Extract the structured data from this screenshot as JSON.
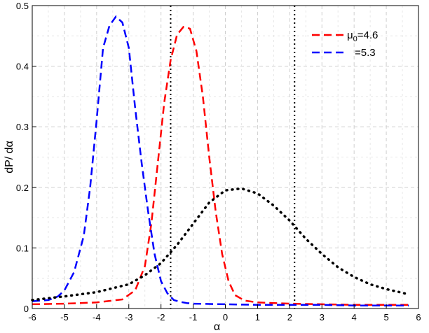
{
  "chart_data": {
    "type": "line",
    "xlabel": "α",
    "ylabel": "dP/ dα",
    "xlim": [
      -6,
      6
    ],
    "ylim": [
      0,
      0.5
    ],
    "xticks": [
      -6,
      -5,
      -4,
      -3,
      -2,
      -1,
      0,
      1,
      2,
      3,
      4,
      5,
      6
    ],
    "yticks": [
      0,
      0.1,
      0.2,
      0.3,
      0.4,
      0.5
    ],
    "grid": true,
    "legend_position": "top-right",
    "legend": {
      "symbol": "μ",
      "subscript": "0",
      "entries": [
        "=4.6",
        "=5.3"
      ]
    },
    "series": [
      {
        "name": "μ0=4.6",
        "color": "#ff0000",
        "style": "dashed",
        "x": [
          -6.0,
          -5.0,
          -4.0,
          -3.2,
          -2.8,
          -2.5,
          -2.3,
          -2.1,
          -1.9,
          -1.7,
          -1.5,
          -1.3,
          -1.1,
          -0.9,
          -0.7,
          -0.5,
          -0.3,
          -0.1,
          0.1,
          0.3,
          0.6,
          1.0,
          2.0,
          3.0,
          4.0,
          5.0,
          5.7
        ],
        "y": [
          0.007,
          0.008,
          0.01,
          0.015,
          0.03,
          0.07,
          0.14,
          0.24,
          0.34,
          0.41,
          0.452,
          0.465,
          0.462,
          0.425,
          0.35,
          0.25,
          0.16,
          0.09,
          0.045,
          0.022,
          0.013,
          0.01,
          0.008,
          0.007,
          0.006,
          0.006,
          0.006
        ]
      },
      {
        "name": "μ0=5.3",
        "color": "#0000ff",
        "style": "dashed",
        "x": [
          -6.0,
          -5.5,
          -5.2,
          -5.0,
          -4.7,
          -4.4,
          -4.2,
          -4.0,
          -3.8,
          -3.6,
          -3.4,
          -3.2,
          -3.0,
          -2.8,
          -2.6,
          -2.4,
          -2.2,
          -2.0,
          -1.8,
          -1.6,
          -1.4,
          -1.2,
          -1.0,
          0.0,
          1.0,
          2.0,
          3.0,
          4.0,
          5.0,
          5.7
        ],
        "y": [
          0.012,
          0.014,
          0.02,
          0.03,
          0.06,
          0.12,
          0.2,
          0.31,
          0.43,
          0.467,
          0.482,
          0.472,
          0.43,
          0.33,
          0.24,
          0.16,
          0.09,
          0.045,
          0.025,
          0.014,
          0.011,
          0.009,
          0.008,
          0.007,
          0.006,
          0.006,
          0.006,
          0.005,
          0.005,
          0.005
        ]
      },
      {
        "name": "",
        "color": "#000000",
        "style": "dotted",
        "x": [
          -6.0,
          -5.0,
          -4.0,
          -3.0,
          -2.5,
          -2.0,
          -1.5,
          -1.0,
          -0.5,
          0.0,
          0.5,
          1.0,
          1.5,
          2.0,
          2.5,
          3.0,
          3.5,
          4.0,
          4.5,
          5.0,
          5.5,
          5.7
        ],
        "y": [
          0.014,
          0.02,
          0.027,
          0.04,
          0.055,
          0.075,
          0.105,
          0.14,
          0.175,
          0.195,
          0.198,
          0.19,
          0.17,
          0.145,
          0.115,
          0.09,
          0.068,
          0.052,
          0.04,
          0.032,
          0.026,
          0.023
        ]
      }
    ],
    "vlines": [
      {
        "x": -1.7,
        "color": "#000000",
        "style": "dotted"
      },
      {
        "x": 2.15,
        "color": "#000000",
        "style": "dotted"
      }
    ]
  }
}
